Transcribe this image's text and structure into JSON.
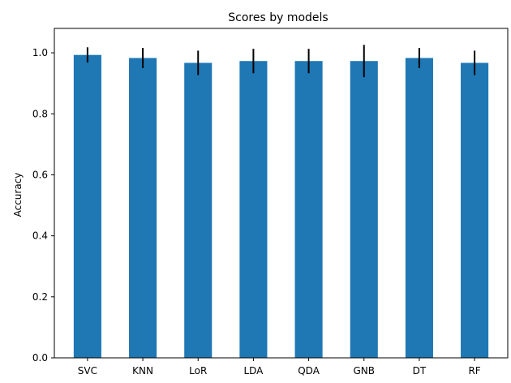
{
  "chart_data": {
    "type": "bar",
    "title": "Scores by models",
    "xlabel": "",
    "ylabel": "Accuracy",
    "categories": [
      "SVC",
      "KNN",
      "LoR",
      "LDA",
      "QDA",
      "GNB",
      "DT",
      "RF"
    ],
    "values": [
      0.993,
      0.983,
      0.967,
      0.973,
      0.973,
      0.973,
      0.983,
      0.967
    ],
    "errors": [
      0.025,
      0.033,
      0.04,
      0.04,
      0.04,
      0.053,
      0.033,
      0.04
    ],
    "ylim": [
      0,
      1.08
    ],
    "yticks": [
      0.0,
      0.2,
      0.4,
      0.6,
      0.8,
      1.0
    ],
    "ytick_labels": [
      "0.0",
      "0.2",
      "0.4",
      "0.6",
      "0.8",
      "1.0"
    ],
    "grid": false,
    "legend": "none",
    "colors": {
      "bar": "#1f77b4",
      "error": "#000000",
      "axis": "#000000"
    }
  }
}
